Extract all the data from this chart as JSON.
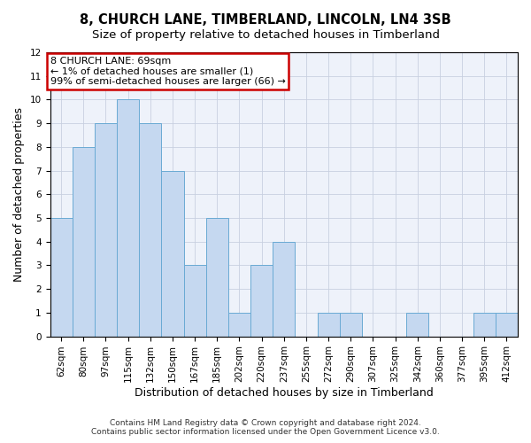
{
  "title": "8, CHURCH LANE, TIMBERLAND, LINCOLN, LN4 3SB",
  "subtitle": "Size of property relative to detached houses in Timberland",
  "xlabel": "Distribution of detached houses by size in Timberland",
  "ylabel": "Number of detached properties",
  "categories": [
    "62sqm",
    "80sqm",
    "97sqm",
    "115sqm",
    "132sqm",
    "150sqm",
    "167sqm",
    "185sqm",
    "202sqm",
    "220sqm",
    "237sqm",
    "255sqm",
    "272sqm",
    "290sqm",
    "307sqm",
    "325sqm",
    "342sqm",
    "360sqm",
    "377sqm",
    "395sqm",
    "412sqm"
  ],
  "values": [
    5,
    8,
    9,
    10,
    9,
    7,
    3,
    5,
    1,
    3,
    4,
    0,
    1,
    1,
    0,
    0,
    1,
    0,
    0,
    1,
    1
  ],
  "bar_color": "#c5d8f0",
  "bar_edge_color": "#6aaad4",
  "annotation_line1": "8 CHURCH LANE: 69sqm",
  "annotation_line2": "← 1% of detached houses are smaller (1)",
  "annotation_line3": "99% of semi-detached houses are larger (66) →",
  "annotation_box_color": "white",
  "annotation_box_edge_color": "#cc0000",
  "ylim": [
    0,
    12
  ],
  "yticks": [
    0,
    1,
    2,
    3,
    4,
    5,
    6,
    7,
    8,
    9,
    10,
    11,
    12
  ],
  "grid_color": "#c8d0e0",
  "background_color": "#eef2fa",
  "footer_line1": "Contains HM Land Registry data © Crown copyright and database right 2024.",
  "footer_line2": "Contains public sector information licensed under the Open Government Licence v3.0.",
  "title_fontsize": 10.5,
  "subtitle_fontsize": 9.5,
  "xlabel_fontsize": 9,
  "ylabel_fontsize": 9,
  "tick_fontsize": 7.5,
  "annot_fontsize": 8,
  "footer_fontsize": 6.5
}
